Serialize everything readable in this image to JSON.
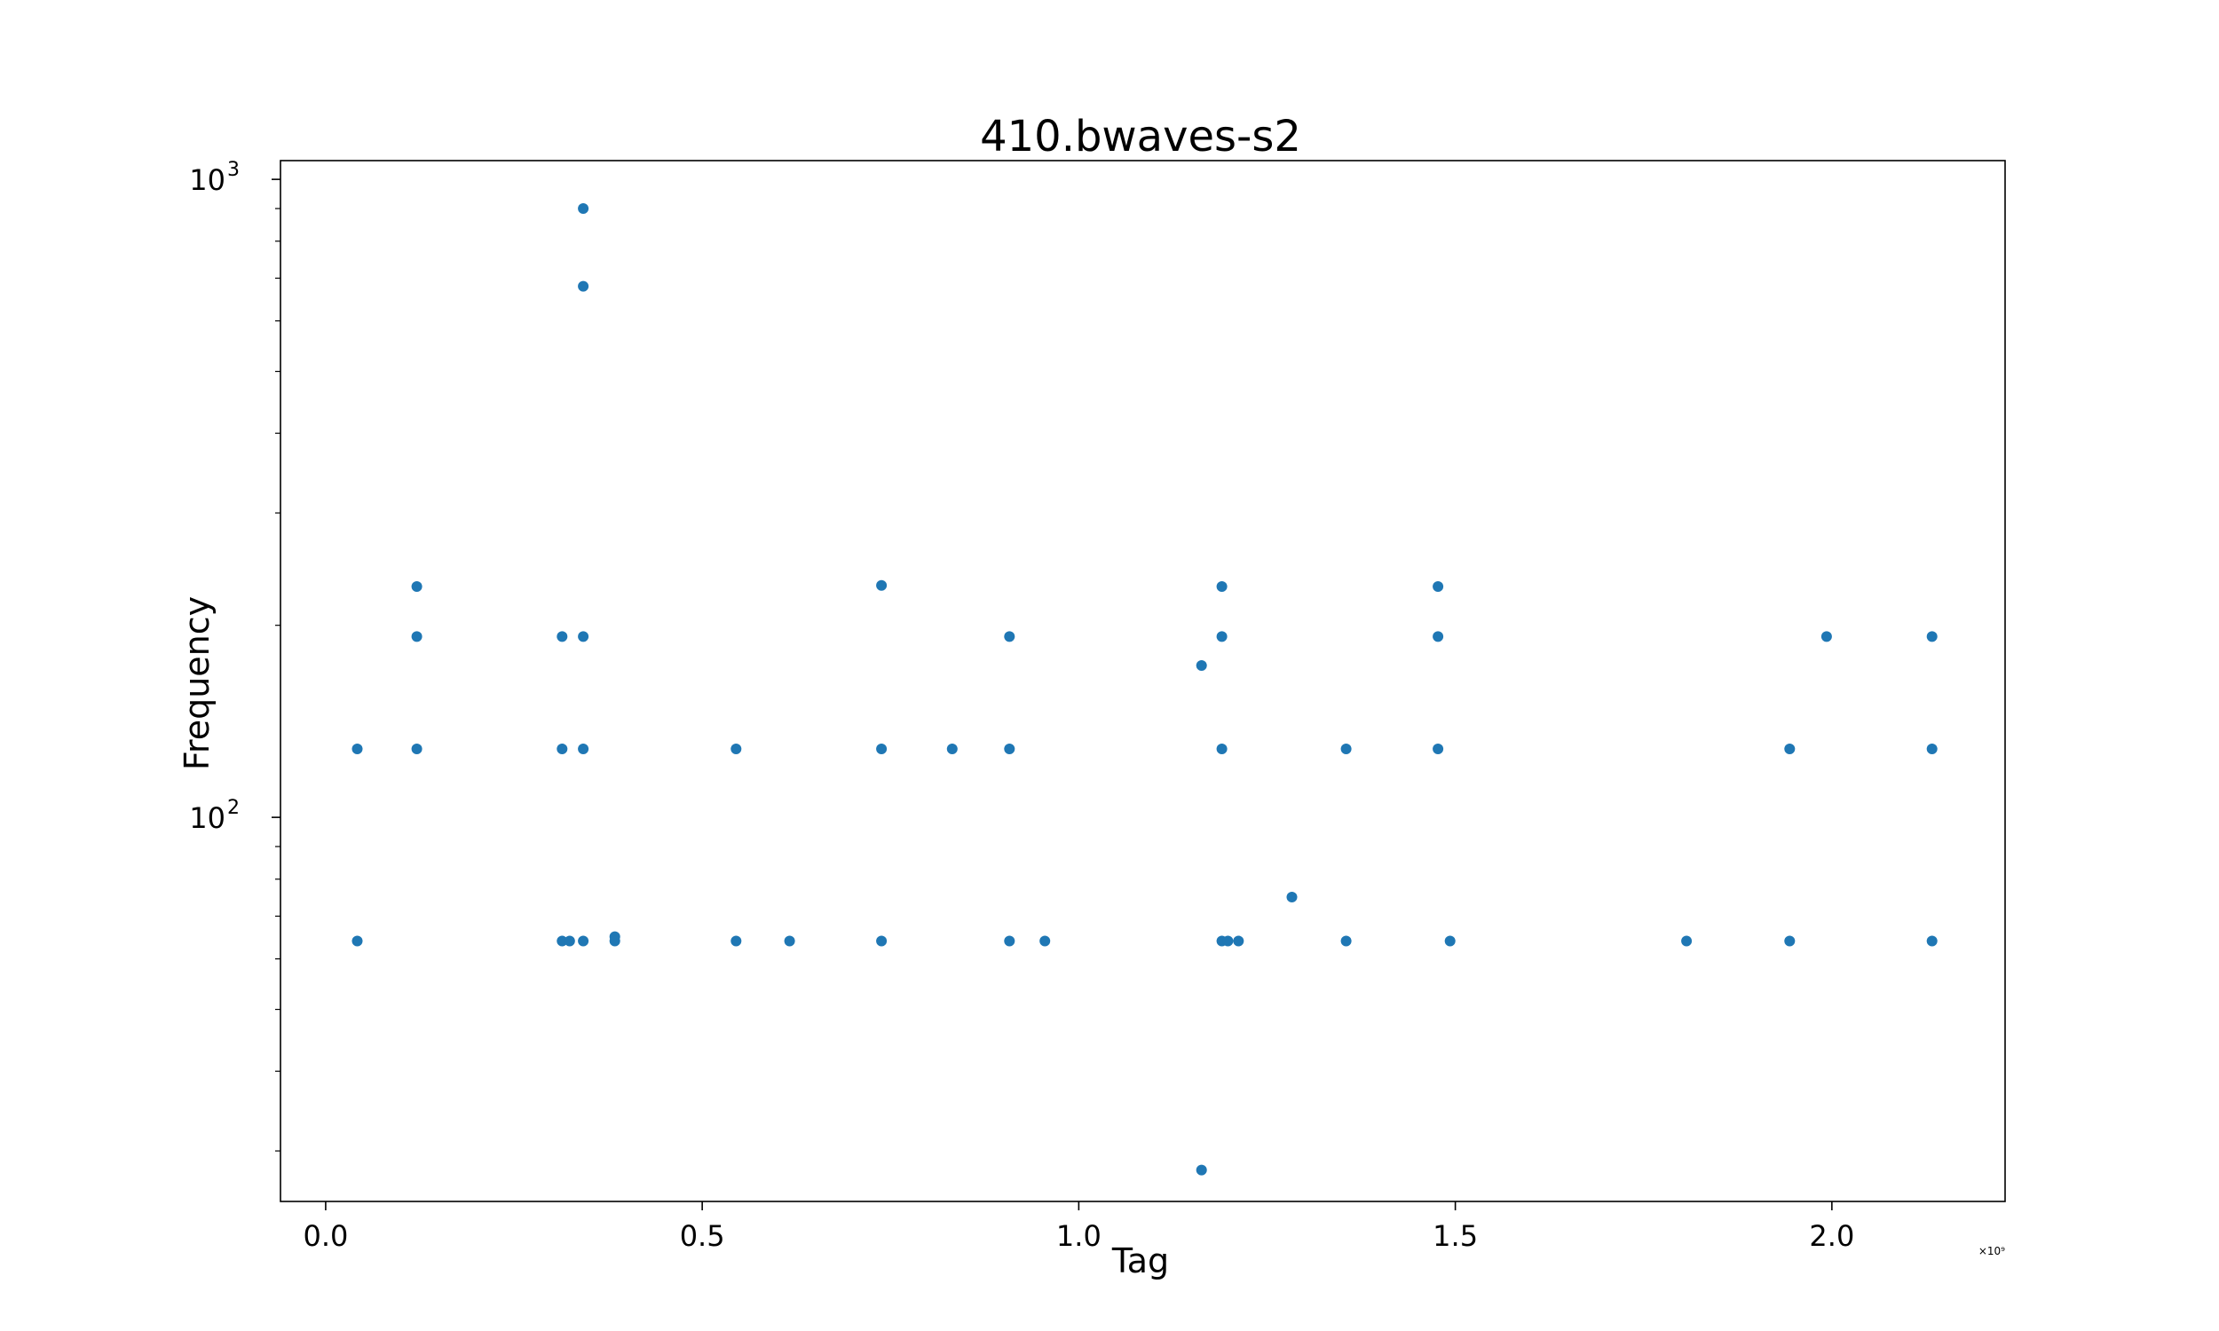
{
  "chart_data": {
    "type": "scatter",
    "title": "410.bwaves-s2",
    "xlabel": "Tag",
    "ylabel": "Frequency",
    "x_offset_label": "×10⁹",
    "x_scale_exponent": 9,
    "xlim": [
      -0.06,
      2.23
    ],
    "ylim": [
      25,
      1070
    ],
    "yscale": "log",
    "grid": false,
    "point_color": "#1f77b4",
    "x_ticks": [
      0.0,
      0.5,
      1.0,
      1.5,
      2.0
    ],
    "x_tick_labels": [
      "0.0",
      "0.5",
      "1.0",
      "1.5",
      "2.0"
    ],
    "y_ticks": [
      {
        "value": 100,
        "base": "10",
        "exp": "2"
      },
      {
        "value": 1000,
        "base": "10",
        "exp": "3"
      }
    ],
    "series": [
      {
        "points": [
          {
            "x": 0.042,
            "y": 128
          },
          {
            "x": 0.042,
            "y": 64
          },
          {
            "x": 0.121,
            "y": 230
          },
          {
            "x": 0.121,
            "y": 192
          },
          {
            "x": 0.121,
            "y": 128
          },
          {
            "x": 0.314,
            "y": 192
          },
          {
            "x": 0.314,
            "y": 128
          },
          {
            "x": 0.314,
            "y": 64
          },
          {
            "x": 0.324,
            "y": 64
          },
          {
            "x": 0.342,
            "y": 900
          },
          {
            "x": 0.342,
            "y": 680
          },
          {
            "x": 0.342,
            "y": 192
          },
          {
            "x": 0.342,
            "y": 128
          },
          {
            "x": 0.342,
            "y": 64
          },
          {
            "x": 0.384,
            "y": 65
          },
          {
            "x": 0.384,
            "y": 64
          },
          {
            "x": 0.545,
            "y": 128
          },
          {
            "x": 0.545,
            "y": 64
          },
          {
            "x": 0.616,
            "y": 64
          },
          {
            "x": 0.738,
            "y": 231
          },
          {
            "x": 0.738,
            "y": 128
          },
          {
            "x": 0.738,
            "y": 64
          },
          {
            "x": 0.832,
            "y": 128
          },
          {
            "x": 0.908,
            "y": 192
          },
          {
            "x": 0.908,
            "y": 128
          },
          {
            "x": 0.908,
            "y": 64
          },
          {
            "x": 0.955,
            "y": 64
          },
          {
            "x": 1.163,
            "y": 173
          },
          {
            "x": 1.163,
            "y": 28
          },
          {
            "x": 1.19,
            "y": 230
          },
          {
            "x": 1.19,
            "y": 192
          },
          {
            "x": 1.19,
            "y": 128
          },
          {
            "x": 1.19,
            "y": 64
          },
          {
            "x": 1.198,
            "y": 64
          },
          {
            "x": 1.212,
            "y": 64
          },
          {
            "x": 1.283,
            "y": 75
          },
          {
            "x": 1.355,
            "y": 128
          },
          {
            "x": 1.355,
            "y": 64
          },
          {
            "x": 1.477,
            "y": 230
          },
          {
            "x": 1.477,
            "y": 192
          },
          {
            "x": 1.477,
            "y": 128
          },
          {
            "x": 1.493,
            "y": 64
          },
          {
            "x": 1.807,
            "y": 64
          },
          {
            "x": 1.944,
            "y": 128
          },
          {
            "x": 1.944,
            "y": 64
          },
          {
            "x": 1.993,
            "y": 192
          },
          {
            "x": 2.133,
            "y": 192
          },
          {
            "x": 2.133,
            "y": 128
          },
          {
            "x": 2.133,
            "y": 64
          }
        ]
      }
    ]
  }
}
